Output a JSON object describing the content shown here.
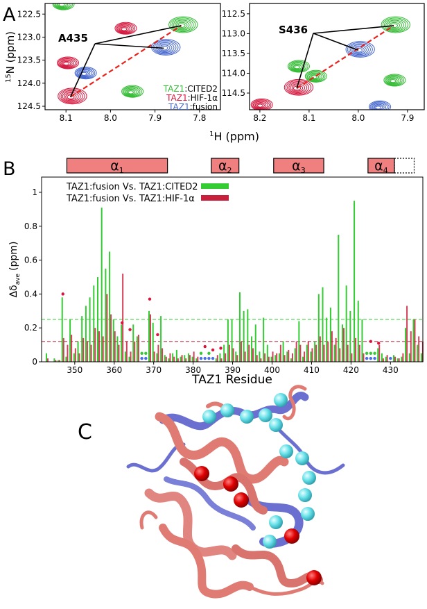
{
  "panel_labels": [
    "A",
    "B",
    "C"
  ],
  "panel_a": {
    "xlabel_sup": "1",
    "xlabel": "H (ppm)",
    "ylabel_sup": "15",
    "ylabel": "N (ppm)",
    "legend": [
      {
        "protein": "TAZ1",
        "partner": ":CITED2",
        "color": "#33bb33"
      },
      {
        "protein": "TAZ1",
        "partner": ":HIF-1α",
        "color": "#d4163c"
      },
      {
        "protein": "TAZ1",
        "partner": ":fusion",
        "color": "#4466cc"
      }
    ],
    "left": {
      "peak_label": "A435",
      "xlim": [
        8.147,
        7.753
      ],
      "ylim": [
        124.575,
        122.27
      ],
      "xticks": [
        8.1,
        {
          "value": 8,
          "label": "8.0"
        },
        7.9,
        7.8
      ],
      "yticks": [
        122.5,
        {
          "value": 123,
          "label": "123.0"
        },
        123.5,
        {
          "value": 124,
          "label": "124.0"
        },
        124.5
      ],
      "peaks": [
        {
          "color": "#33bb33",
          "x": [
            7.841,
            7.955,
            8.11
          ],
          "y": [
            122.75,
            124.2,
            122.3
          ]
        },
        {
          "color": "#d4163c",
          "x": [
            8.09,
            7.97,
            8.1
          ],
          "y": [
            124.3,
            122.83,
            123.58
          ]
        },
        {
          "color": "#4466cc",
          "x": [
            7.88,
            8.06
          ],
          "y": [
            123.24,
            123.8
          ]
        }
      ]
    },
    "right": {
      "peak_label": "S436",
      "xlim": [
        8.221,
        7.866
      ],
      "ylim": [
        114.92,
        112.24
      ],
      "xticks": [
        8.2,
        8.1,
        {
          "value": 8,
          "label": "8.0"
        },
        7.9
      ],
      "yticks": [
        112.5,
        {
          "value": 113,
          "label": "113.0"
        },
        113.5,
        {
          "value": 114,
          "label": "114.0"
        },
        114.5
      ],
      "peaks": [
        {
          "color": "#33bb33",
          "x": [
            7.928,
            8.125,
            7.93,
            8.09
          ],
          "y": [
            112.8,
            113.85,
            114.2,
            114.1
          ]
        },
        {
          "color": "#d4163c",
          "x": [
            8.125,
            8.2
          ],
          "y": [
            114.38,
            114.82
          ]
        },
        {
          "color": "#4466cc",
          "x": [
            8.0,
            7.96
          ],
          "y": [
            113.42,
            114.87
          ]
        }
      ]
    }
  },
  "chart_data": {
    "type": "bar",
    "xlabel": "TAZ1 Residue",
    "ylabel": "Δδ",
    "ylabel_sub": "ave",
    "ylabel_unit": "(ppm)",
    "xlim": [
      341.6,
      438.2
    ],
    "ylim": [
      0,
      1.09
    ],
    "xticks": [
      350,
      360,
      370,
      380,
      390,
      400,
      410,
      420,
      430
    ],
    "yticks": [
      0,
      0.2,
      0.4,
      0.6,
      0.8,
      1
    ],
    "helices": [
      {
        "name": "α",
        "sub": "1",
        "start": 348,
        "end": 373.5
      },
      {
        "name": "α",
        "sub": "2",
        "start": 384.6,
        "end": 391.6
      },
      {
        "name": "α",
        "sub": "3",
        "start": 400.4,
        "end": 413.1
      },
      {
        "name": "α",
        "sub": "4",
        "start": 424.3,
        "end": 431,
        "dotted_end": 436
      }
    ],
    "thresholds": [
      {
        "value": 0.25,
        "color": "#33cc33"
      },
      {
        "value": 0.12,
        "color": "#c0304a"
      }
    ],
    "x": [
      343,
      344,
      345,
      346,
      347,
      348,
      349,
      350,
      351,
      352,
      353,
      354,
      355,
      356,
      357,
      358,
      359,
      360,
      361,
      362,
      363,
      364,
      365,
      366,
      367,
      368,
      369,
      370,
      371,
      372,
      373,
      374,
      375,
      376,
      377,
      378,
      379,
      380,
      381,
      382,
      383,
      384,
      385,
      386,
      387,
      388,
      389,
      390,
      391,
      392,
      393,
      394,
      395,
      396,
      397,
      398,
      399,
      400,
      401,
      402,
      403,
      404,
      405,
      406,
      407,
      408,
      409,
      410,
      411,
      412,
      413,
      414,
      415,
      416,
      417,
      418,
      419,
      420,
      421,
      422,
      423,
      424,
      425,
      426,
      427,
      428,
      429,
      430,
      431,
      432,
      433,
      434,
      435,
      436,
      437,
      438
    ],
    "series": [
      {
        "name": "TAZ1:fusion Vs. TAZ1:CITED2",
        "color": "#33cc33",
        "values": [
          0.05,
          null,
          0.02,
          0.01,
          0.38,
          0.03,
          0.25,
          0.05,
          0.12,
          0.27,
          0.33,
          0.38,
          0.45,
          0.5,
          0.91,
          0.55,
          0.65,
          0.25,
          0.15,
          0.22,
          0.06,
          0.03,
          0.22,
          0.15,
          null,
          null,
          0.3,
          0.23,
          0.05,
          0.27,
          0.04,
          0.02,
          0.05,
          0.07,
          0.03,
          0.04,
          0.05,
          0.03,
          0.02,
          null,
          null,
          null,
          null,
          0.02,
          0.05,
          0.1,
          0.25,
          0.25,
          0.06,
          0.41,
          0.3,
          0.31,
          0.15,
          0.22,
          0.06,
          0.26,
          0.1,
          0.03,
          0.04,
          0.05,
          0.12,
          0.06,
          0.02,
          0.08,
          0.24,
          0.03,
          0.1,
          0.06,
          0.12,
          0.4,
          0.44,
          0.26,
          0.32,
          0.1,
          0.75,
          0.22,
          0.45,
          0.3,
          0.95,
          0.36,
          0.25,
          null,
          null,
          null,
          0.08,
          0.05,
          0.03,
          null,
          0.04,
          0.02,
          0.03,
          0.2,
          0.05,
          0.25,
          0.1,
          0.05
        ]
      },
      {
        "name": "TAZ1:fusion Vs. TAZ1:HIF-1α",
        "color": "#c8203c",
        "values": [
          0.02,
          null,
          0.01,
          0.01,
          0.14,
          0.1,
          0.16,
          0.08,
          0.05,
          0.14,
          0.12,
          0.1,
          0.2,
          0.18,
          0.15,
          0.4,
          0.28,
          0.18,
          0.1,
          0.52,
          0.12,
          0.06,
          0.12,
          0.16,
          null,
          null,
          0.28,
          0.06,
          0.1,
          0.08,
          0.03,
          0.05,
          0.03,
          0.02,
          0.04,
          0.02,
          0.04,
          0.06,
          0.03,
          null,
          null,
          null,
          null,
          0.04,
          0.02,
          0.05,
          0.1,
          0.08,
          0.04,
          0.12,
          0.06,
          0.1,
          0.08,
          0.04,
          0.02,
          0.05,
          0.03,
          0.06,
          0.05,
          0.1,
          0.04,
          0.07,
          0.05,
          0.12,
          0.1,
          0.06,
          0.12,
          0.08,
          0.1,
          0.15,
          0.1,
          0.12,
          0.18,
          0.14,
          0.08,
          0.2,
          0.1,
          0.05,
          0.14,
          0.1,
          0.05,
          null,
          null,
          null,
          0.1,
          0.02,
          0.04,
          null,
          0.03,
          0.02,
          0.05,
          0.33,
          0.18,
          0.25,
          0.15,
          0.12
        ]
      }
    ],
    "markers": [
      {
        "color": "#dc143c",
        "x": [
          347,
          362,
          364,
          369,
          371,
          383,
          385,
          387,
          425,
          427
        ],
        "y": [
          0.4,
          0.23,
          0.19,
          0.37,
          0.16,
          0.09,
          0.07,
          0.08,
          0.12,
          0.11
        ]
      },
      {
        "color": "#33cc33",
        "x": [
          367,
          368,
          382,
          384,
          424,
          425,
          426
        ],
        "y": [
          0.05,
          0.05,
          0.05,
          0.05,
          0.05,
          0.05,
          0.05
        ]
      },
      {
        "color": "#4a6fe3",
        "x": [
          367,
          368,
          382,
          383,
          384,
          385,
          424,
          425,
          426,
          430
        ],
        "y": [
          0.02,
          0.02,
          0.02,
          0.02,
          0.02,
          0.02,
          0.02,
          0.02,
          0.02,
          0.02
        ]
      }
    ]
  }
}
